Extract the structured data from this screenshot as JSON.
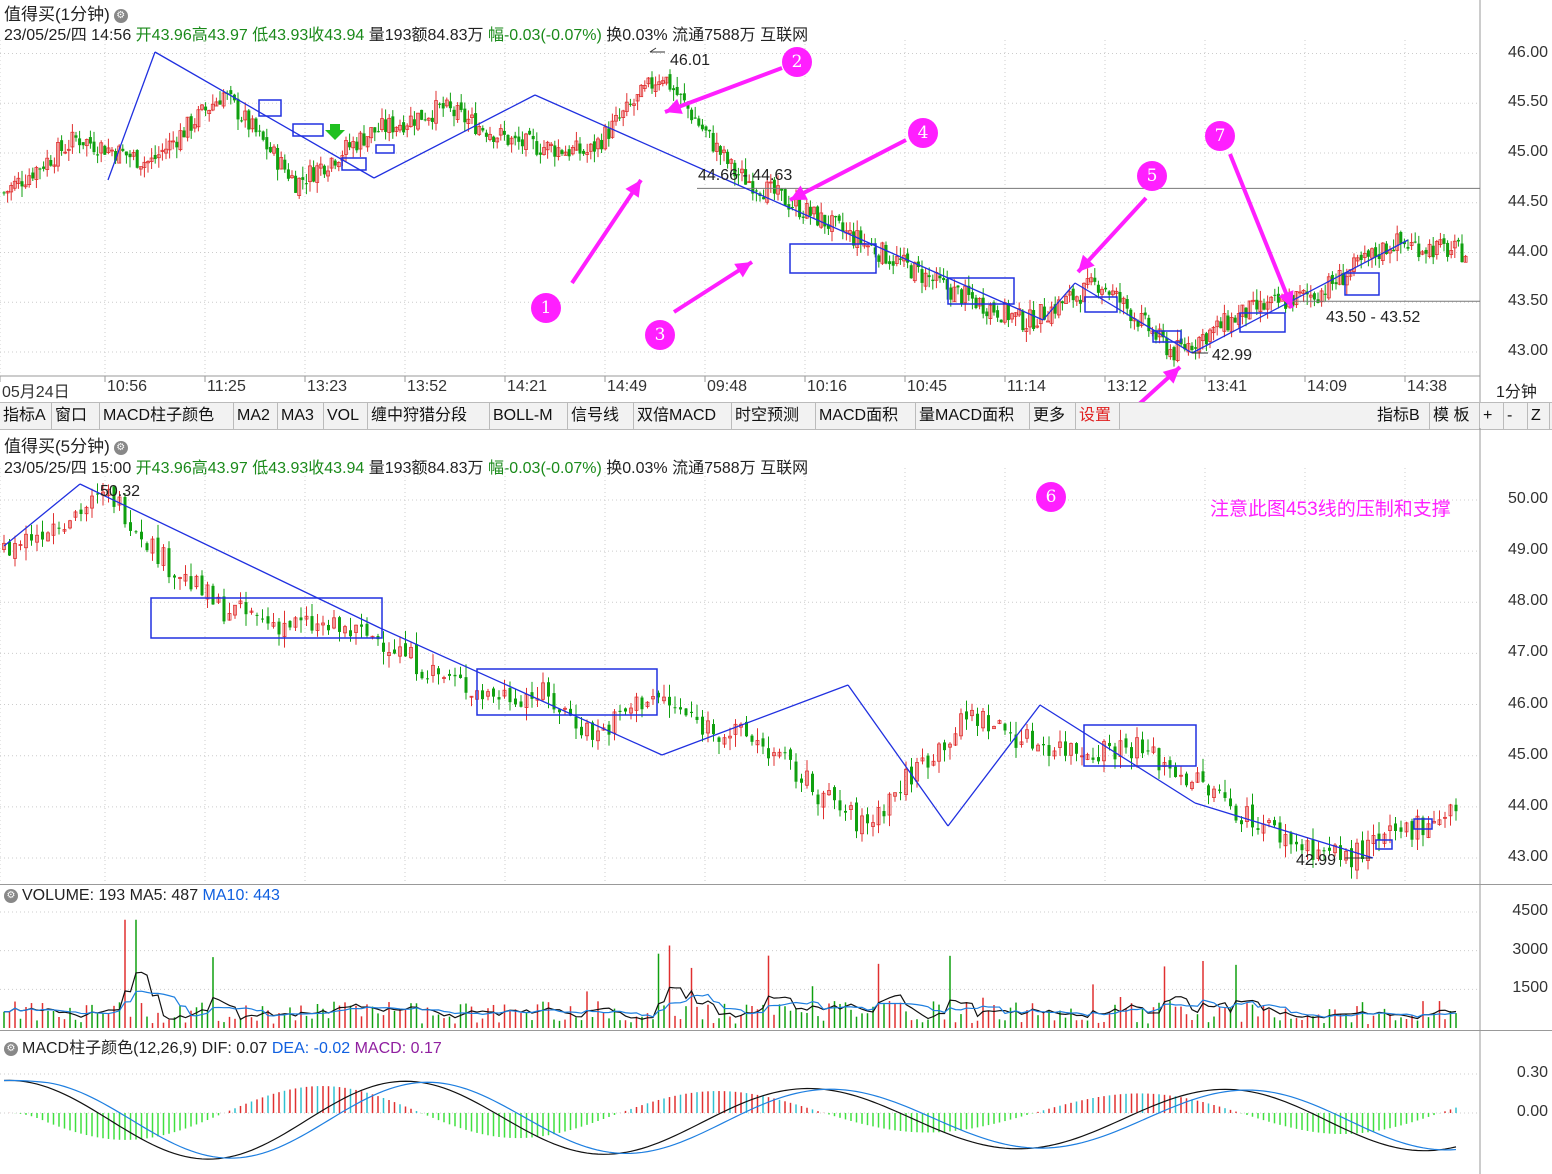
{
  "top_panel": {
    "title": "值得买(1分钟)",
    "info": {
      "date": "23/05/25/四 14:56",
      "open": "开43.96",
      "high": "高43.97",
      "low": "低43.93",
      "close": "收43.94",
      "vol": "量193",
      "amount": "额84.83万",
      "change": "幅-0.03(-0.07%)",
      "turnover": "换0.03%",
      "float": "流通7588万",
      "industry": "互联网"
    },
    "y_ticks": [
      "46.00",
      "45.50",
      "45.00",
      "44.50",
      "44.00",
      "43.50",
      "43.00"
    ],
    "x_ticks": [
      "05月24日",
      "10:56",
      "11:25",
      "13:23",
      "13:52",
      "14:21",
      "14:49",
      "09:48",
      "10:16",
      "10:45",
      "11:14",
      "13:12",
      "13:41",
      "14:09",
      "14:38"
    ],
    "period_label": "1分钟",
    "annotations": {
      "high_label": "46.01",
      "resist_label": "44.66 - 44.63",
      "low_label": "42.99",
      "support_label": "43.50 - 43.52"
    },
    "markers": [
      "1",
      "2",
      "3",
      "4",
      "5",
      "6",
      "7"
    ]
  },
  "toolbar": {
    "items": [
      "指标A",
      "窗口",
      "MACD柱子颜色",
      "MA2",
      "MA3",
      "VOL",
      "缠中狩猎分段",
      "BOLL-M",
      "信号线",
      "双倍MACD",
      "时空预测",
      "MACD面积",
      "量MACD面积",
      "更多",
      "设置"
    ],
    "right_items": [
      "指标B",
      "模 板",
      "+",
      "-",
      "Z"
    ]
  },
  "mid_panel": {
    "title": "值得买(5分钟)",
    "info": {
      "date": "23/05/25/四 15:00",
      "open": "开43.96",
      "high": "高43.97",
      "low": "低43.93",
      "close": "收43.94",
      "vol": "量193",
      "amount": "额84.83万",
      "change": "幅-0.03(-0.07%)",
      "turnover": "换0.03%",
      "float": "流通7588万",
      "industry": "互联网"
    },
    "y_ticks": [
      "50.00",
      "49.00",
      "48.00",
      "47.00",
      "46.00",
      "45.00",
      "44.00",
      "43.00"
    ],
    "note": "注意此图453线的压制和支撑",
    "high_label": "50.32",
    "low_label": "42.99"
  },
  "volume_panel": {
    "label": "VOLUME: 193",
    "ma5": "MA5: 487",
    "ma10": "MA10: 443",
    "y_ticks": [
      "4500",
      "3000",
      "1500"
    ]
  },
  "macd_panel": {
    "label": "MACD柱子颜色(12,26,9)",
    "dif": "DIF: 0.07",
    "dea": "DEA: -0.02",
    "macd": "MACD: 0.17",
    "y_ticks": [
      "0.30",
      "0.00"
    ]
  },
  "colors": {
    "up": "#e03030",
    "down": "#10a010",
    "trend": "#2030e0",
    "marker": "#ff1fff",
    "macd_neg": "#40e040",
    "macd_pos_cyan": "#30c0d0"
  },
  "chart_data": [
    {
      "type": "candlestick",
      "title": "值得买(1分钟)",
      "ylim": [
        42.9,
        46.1
      ],
      "key_levels": {
        "high": 46.01,
        "low": 42.99,
        "resistance": [
          44.63,
          44.66
        ],
        "support": [
          43.5,
          43.52
        ]
      },
      "trend_points": [
        [
          0,
          44.75
        ],
        [
          1,
          46.0
        ],
        [
          2,
          44.75
        ],
        [
          3,
          45.55
        ],
        [
          4,
          43.3
        ],
        [
          5,
          43.7
        ],
        [
          6,
          42.99
        ],
        [
          7,
          44.1
        ]
      ]
    },
    {
      "type": "candlestick",
      "title": "值得买(5分钟)",
      "ylim": [
        42.8,
        50.4
      ],
      "key_levels": {
        "high": 50.32,
        "low": 42.99
      },
      "trend_points": [
        [
          0,
          49.1
        ],
        [
          1,
          50.32
        ],
        [
          2,
          45.0
        ],
        [
          3,
          46.4
        ],
        [
          4,
          43.6
        ],
        [
          5,
          46.0
        ],
        [
          6,
          42.99
        ]
      ]
    },
    {
      "type": "bar",
      "title": "VOLUME",
      "series": [
        {
          "name": "MA5",
          "last": 487
        },
        {
          "name": "MA10",
          "last": 443
        }
      ],
      "last_value": 193,
      "ylim": [
        0,
        4800
      ]
    },
    {
      "type": "bar",
      "title": "MACD",
      "series": [
        {
          "name": "DIF",
          "last": 0.07
        },
        {
          "name": "DEA",
          "last": -0.02
        },
        {
          "name": "MACD",
          "last": 0.17
        }
      ],
      "ylim": [
        -0.35,
        0.45
      ]
    }
  ]
}
